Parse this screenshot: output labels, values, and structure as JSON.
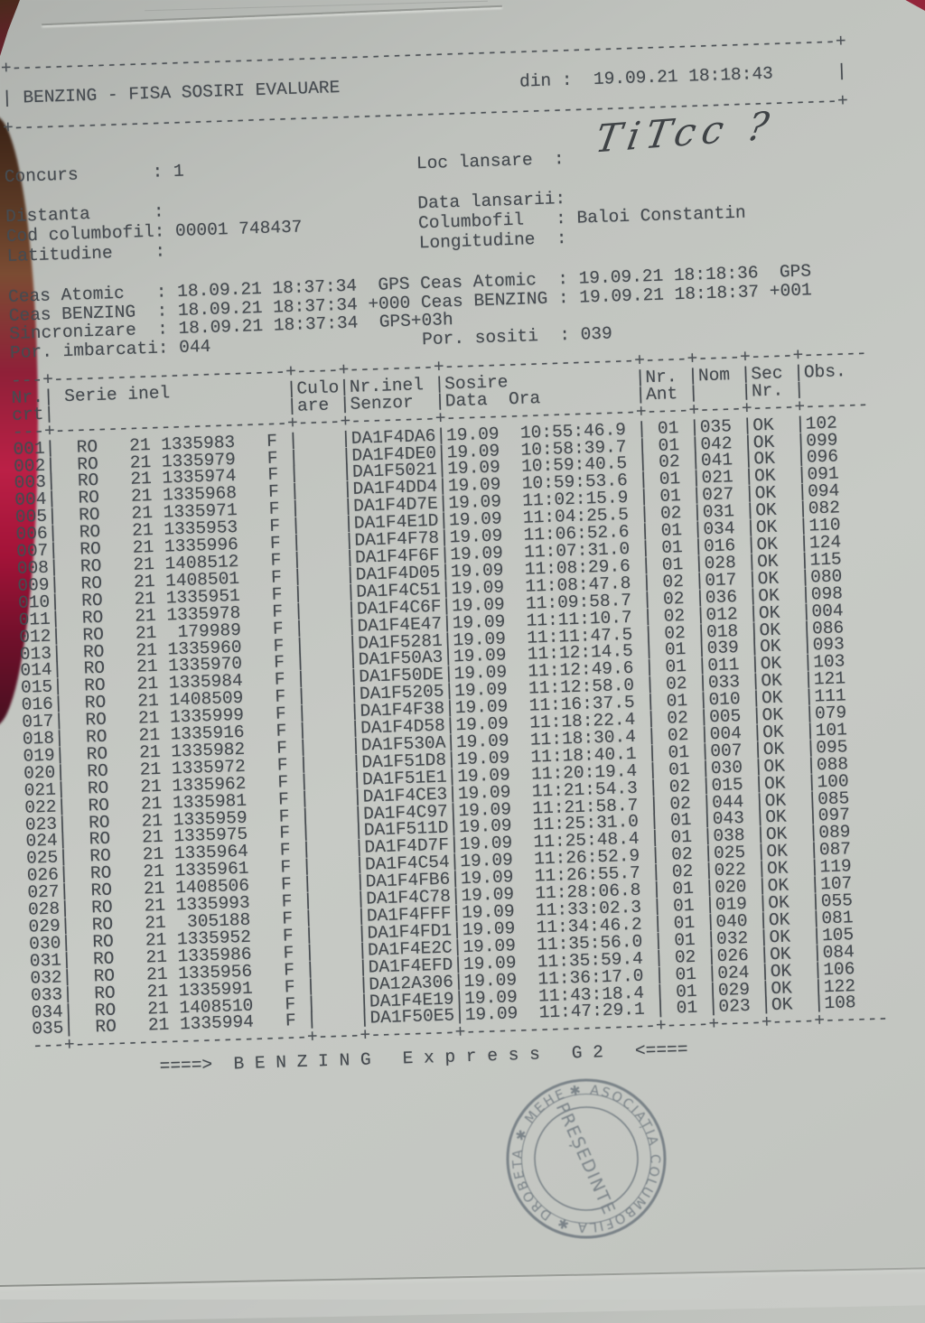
{
  "header": {
    "title": "BENZING - FISA SOSIRI EVALUARE",
    "din_label": "din :",
    "din_value": "19.09.21 18:18:43"
  },
  "info": {
    "rows": [
      {
        "left_label": "Concurs",
        "left_value": "1",
        "right_label": "Loc lansare",
        "right_value": ""
      },
      {
        "left_label": "Distanta",
        "left_value": "",
        "right_label": "Data lansarii",
        "right_value": ""
      },
      {
        "left_label": "Cod columbofil",
        "left_value": "00001 748437",
        "right_label": "Columbofil",
        "right_value": "Baloi Constantin"
      },
      {
        "left_label": "Latitudine",
        "left_value": "",
        "right_label": "Longitudine",
        "right_value": ""
      }
    ],
    "loc_lansare_handwritten": "TiTcc ?"
  },
  "clocks": {
    "rows": [
      {
        "left_label": "Ceas Atomic",
        "left_value": "18.09.21 18:37:34  GPS",
        "right_label": "Ceas Atomic",
        "right_value": "19.09.21 18:18:36  GPS"
      },
      {
        "left_label": "Ceas BENZING",
        "left_value": "18.09.21 18:37:34 +000",
        "right_label": "Ceas BENZING",
        "right_value": "19.09.21 18:18:37 +001"
      },
      {
        "left_label": "Sincronizare",
        "left_value": "18.09.21 18:37:34  GPS+03h",
        "right_label": "",
        "right_value": ""
      },
      {
        "left_label": "Por. imbarcati",
        "left_value": "044",
        "right_label": "Por. sositi",
        "right_value": "039"
      }
    ]
  },
  "table": {
    "headers": {
      "nr": [
        "Nr.",
        "crt"
      ],
      "serie": "Serie inel",
      "culoare": [
        "Culo",
        "are"
      ],
      "senzor": [
        "Nr.inel",
        "Senzor"
      ],
      "sosire": [
        "Sosire",
        "Data  Ora"
      ],
      "ant": [
        "Nr.",
        "Ant"
      ],
      "nom": "Nom",
      "sec": [
        "Sec",
        "Nr."
      ],
      "obs": "Obs."
    },
    "rows": [
      {
        "nr": "001",
        "country": "RO",
        "year": "21",
        "ring": "1335983",
        "sex": "F",
        "culoare": "",
        "sensor": "DA1F4DA6",
        "date": "19.09",
        "time": "10:55:46.9",
        "ant": "01",
        "nom": "035",
        "sec": "OK",
        "obs": "102"
      },
      {
        "nr": "002",
        "country": "RO",
        "year": "21",
        "ring": "1335979",
        "sex": "F",
        "culoare": "",
        "sensor": "DA1F4DE0",
        "date": "19.09",
        "time": "10:58:39.7",
        "ant": "01",
        "nom": "042",
        "sec": "OK",
        "obs": "099"
      },
      {
        "nr": "003",
        "country": "RO",
        "year": "21",
        "ring": "1335974",
        "sex": "F",
        "culoare": "",
        "sensor": "DA1F5021",
        "date": "19.09",
        "time": "10:59:40.5",
        "ant": "02",
        "nom": "041",
        "sec": "OK",
        "obs": "096"
      },
      {
        "nr": "004",
        "country": "RO",
        "year": "21",
        "ring": "1335968",
        "sex": "F",
        "culoare": "",
        "sensor": "DA1F4DD4",
        "date": "19.09",
        "time": "10:59:53.6",
        "ant": "01",
        "nom": "021",
        "sec": "OK",
        "obs": "091"
      },
      {
        "nr": "005",
        "country": "RO",
        "year": "21",
        "ring": "1335971",
        "sex": "F",
        "culoare": "",
        "sensor": "DA1F4D7E",
        "date": "19.09",
        "time": "11:02:15.9",
        "ant": "01",
        "nom": "027",
        "sec": "OK",
        "obs": "094"
      },
      {
        "nr": "006",
        "country": "RO",
        "year": "21",
        "ring": "1335953",
        "sex": "F",
        "culoare": "",
        "sensor": "DA1F4E1D",
        "date": "19.09",
        "time": "11:04:25.5",
        "ant": "02",
        "nom": "031",
        "sec": "OK",
        "obs": "082"
      },
      {
        "nr": "007",
        "country": "RO",
        "year": "21",
        "ring": "1335996",
        "sex": "F",
        "culoare": "",
        "sensor": "DA1F4F78",
        "date": "19.09",
        "time": "11:06:52.6",
        "ant": "01",
        "nom": "034",
        "sec": "OK",
        "obs": "110"
      },
      {
        "nr": "008",
        "country": "RO",
        "year": "21",
        "ring": "1408512",
        "sex": "F",
        "culoare": "",
        "sensor": "DA1F4F6F",
        "date": "19.09",
        "time": "11:07:31.0",
        "ant": "01",
        "nom": "016",
        "sec": "OK",
        "obs": "124"
      },
      {
        "nr": "009",
        "country": "RO",
        "year": "21",
        "ring": "1408501",
        "sex": "F",
        "culoare": "",
        "sensor": "DA1F4D05",
        "date": "19.09",
        "time": "11:08:29.6",
        "ant": "01",
        "nom": "028",
        "sec": "OK",
        "obs": "115"
      },
      {
        "nr": "010",
        "country": "RO",
        "year": "21",
        "ring": "1335951",
        "sex": "F",
        "culoare": "",
        "sensor": "DA1F4C51",
        "date": "19.09",
        "time": "11:08:47.8",
        "ant": "02",
        "nom": "017",
        "sec": "OK",
        "obs": "080"
      },
      {
        "nr": "011",
        "country": "RO",
        "year": "21",
        "ring": "1335978",
        "sex": "F",
        "culoare": "",
        "sensor": "DA1F4C6F",
        "date": "19.09",
        "time": "11:09:58.7",
        "ant": "02",
        "nom": "036",
        "sec": "OK",
        "obs": "098"
      },
      {
        "nr": "012",
        "country": "RO",
        "year": "21",
        "ring": "179989",
        "sex": "F",
        "culoare": "",
        "sensor": "DA1F4E47",
        "date": "19.09",
        "time": "11:11:10.7",
        "ant": "02",
        "nom": "012",
        "sec": "OK",
        "obs": "004"
      },
      {
        "nr": "013",
        "country": "RO",
        "year": "21",
        "ring": "1335960",
        "sex": "F",
        "culoare": "",
        "sensor": "DA1F5281",
        "date": "19.09",
        "time": "11:11:47.5",
        "ant": "02",
        "nom": "018",
        "sec": "OK",
        "obs": "086"
      },
      {
        "nr": "014",
        "country": "RO",
        "year": "21",
        "ring": "1335970",
        "sex": "F",
        "culoare": "",
        "sensor": "DA1F50A3",
        "date": "19.09",
        "time": "11:12:14.5",
        "ant": "01",
        "nom": "039",
        "sec": "OK",
        "obs": "093"
      },
      {
        "nr": "015",
        "country": "RO",
        "year": "21",
        "ring": "1335984",
        "sex": "F",
        "culoare": "",
        "sensor": "DA1F50DE",
        "date": "19.09",
        "time": "11:12:49.6",
        "ant": "01",
        "nom": "011",
        "sec": "OK",
        "obs": "103"
      },
      {
        "nr": "016",
        "country": "RO",
        "year": "21",
        "ring": "1408509",
        "sex": "F",
        "culoare": "",
        "sensor": "DA1F5205",
        "date": "19.09",
        "time": "11:12:58.0",
        "ant": "02",
        "nom": "033",
        "sec": "OK",
        "obs": "121"
      },
      {
        "nr": "017",
        "country": "RO",
        "year": "21",
        "ring": "1335999",
        "sex": "F",
        "culoare": "",
        "sensor": "DA1F4F38",
        "date": "19.09",
        "time": "11:16:37.5",
        "ant": "01",
        "nom": "010",
        "sec": "OK",
        "obs": "111"
      },
      {
        "nr": "018",
        "country": "RO",
        "year": "21",
        "ring": "1335916",
        "sex": "F",
        "culoare": "",
        "sensor": "DA1F4D58",
        "date": "19.09",
        "time": "11:18:22.4",
        "ant": "02",
        "nom": "005",
        "sec": "OK",
        "obs": "079"
      },
      {
        "nr": "019",
        "country": "RO",
        "year": "21",
        "ring": "1335982",
        "sex": "F",
        "culoare": "",
        "sensor": "DA1F530A",
        "date": "19.09",
        "time": "11:18:30.4",
        "ant": "02",
        "nom": "004",
        "sec": "OK",
        "obs": "101"
      },
      {
        "nr": "020",
        "country": "RO",
        "year": "21",
        "ring": "1335972",
        "sex": "F",
        "culoare": "",
        "sensor": "DA1F51D8",
        "date": "19.09",
        "time": "11:18:40.1",
        "ant": "01",
        "nom": "007",
        "sec": "OK",
        "obs": "095"
      },
      {
        "nr": "021",
        "country": "RO",
        "year": "21",
        "ring": "1335962",
        "sex": "F",
        "culoare": "",
        "sensor": "DA1F51E1",
        "date": "19.09",
        "time": "11:20:19.4",
        "ant": "01",
        "nom": "030",
        "sec": "OK",
        "obs": "088"
      },
      {
        "nr": "022",
        "country": "RO",
        "year": "21",
        "ring": "1335981",
        "sex": "F",
        "culoare": "",
        "sensor": "DA1F4CE3",
        "date": "19.09",
        "time": "11:21:54.3",
        "ant": "02",
        "nom": "015",
        "sec": "OK",
        "obs": "100"
      },
      {
        "nr": "023",
        "country": "RO",
        "year": "21",
        "ring": "1335959",
        "sex": "F",
        "culoare": "",
        "sensor": "DA1F4C97",
        "date": "19.09",
        "time": "11:21:58.7",
        "ant": "02",
        "nom": "044",
        "sec": "OK",
        "obs": "085"
      },
      {
        "nr": "024",
        "country": "RO",
        "year": "21",
        "ring": "1335975",
        "sex": "F",
        "culoare": "",
        "sensor": "DA1F511D",
        "date": "19.09",
        "time": "11:25:31.0",
        "ant": "01",
        "nom": "043",
        "sec": "OK",
        "obs": "097"
      },
      {
        "nr": "025",
        "country": "RO",
        "year": "21",
        "ring": "1335964",
        "sex": "F",
        "culoare": "",
        "sensor": "DA1F4D7F",
        "date": "19.09",
        "time": "11:25:48.4",
        "ant": "01",
        "nom": "038",
        "sec": "OK",
        "obs": "089"
      },
      {
        "nr": "026",
        "country": "RO",
        "year": "21",
        "ring": "1335961",
        "sex": "F",
        "culoare": "",
        "sensor": "DA1F4C54",
        "date": "19.09",
        "time": "11:26:52.9",
        "ant": "02",
        "nom": "025",
        "sec": "OK",
        "obs": "087"
      },
      {
        "nr": "027",
        "country": "RO",
        "year": "21",
        "ring": "1408506",
        "sex": "F",
        "culoare": "",
        "sensor": "DA1F4FB6",
        "date": "19.09",
        "time": "11:26:55.7",
        "ant": "02",
        "nom": "022",
        "sec": "OK",
        "obs": "119"
      },
      {
        "nr": "028",
        "country": "RO",
        "year": "21",
        "ring": "1335993",
        "sex": "F",
        "culoare": "",
        "sensor": "DA1F4C78",
        "date": "19.09",
        "time": "11:28:06.8",
        "ant": "01",
        "nom": "020",
        "sec": "OK",
        "obs": "107"
      },
      {
        "nr": "029",
        "country": "RO",
        "year": "21",
        "ring": "305188",
        "sex": "F",
        "culoare": "",
        "sensor": "DA1F4FFF",
        "date": "19.09",
        "time": "11:33:02.3",
        "ant": "01",
        "nom": "019",
        "sec": "OK",
        "obs": "055"
      },
      {
        "nr": "030",
        "country": "RO",
        "year": "21",
        "ring": "1335952",
        "sex": "F",
        "culoare": "",
        "sensor": "DA1F4FD1",
        "date": "19.09",
        "time": "11:34:46.2",
        "ant": "01",
        "nom": "040",
        "sec": "OK",
        "obs": "081"
      },
      {
        "nr": "031",
        "country": "RO",
        "year": "21",
        "ring": "1335986",
        "sex": "F",
        "culoare": "",
        "sensor": "DA1F4E2C",
        "date": "19.09",
        "time": "11:35:56.0",
        "ant": "01",
        "nom": "032",
        "sec": "OK",
        "obs": "105"
      },
      {
        "nr": "032",
        "country": "RO",
        "year": "21",
        "ring": "1335956",
        "sex": "F",
        "culoare": "",
        "sensor": "DA1F4EFD",
        "date": "19.09",
        "time": "11:35:59.4",
        "ant": "02",
        "nom": "026",
        "sec": "OK",
        "obs": "084"
      },
      {
        "nr": "033",
        "country": "RO",
        "year": "21",
        "ring": "1335991",
        "sex": "F",
        "culoare": "",
        "sensor": "DA12A306",
        "date": "19.09",
        "time": "11:36:17.0",
        "ant": "01",
        "nom": "024",
        "sec": "OK",
        "obs": "106"
      },
      {
        "nr": "034",
        "country": "RO",
        "year": "21",
        "ring": "1408510",
        "sex": "F",
        "culoare": "",
        "sensor": "DA1F4E19",
        "date": "19.09",
        "time": "11:43:18.4",
        "ant": "01",
        "nom": "029",
        "sec": "OK",
        "obs": "122"
      },
      {
        "nr": "035",
        "country": "RO",
        "year": "21",
        "ring": "1335994",
        "sex": "F",
        "culoare": "",
        "sensor": "DA1F50E5",
        "date": "19.09",
        "time": "11:47:29.1",
        "ant": "01",
        "nom": "023",
        "sec": "OK",
        "obs": "108"
      }
    ]
  },
  "footer": {
    "text": "====>  B E N Z I N G   E x p r e s s   G 2   <===="
  },
  "stamp": {
    "rim_text": "✱ ASOCIAȚIA COLUMBOFILA ✱ DROBETA ✱ MEHEDINȚI ",
    "center_text": "PREȘEDINTE"
  },
  "colors": {
    "surface_red": "#bb2046",
    "paper": "#c7cac5",
    "ink": "#464b50",
    "stamp_ink": "#4e5a66"
  }
}
